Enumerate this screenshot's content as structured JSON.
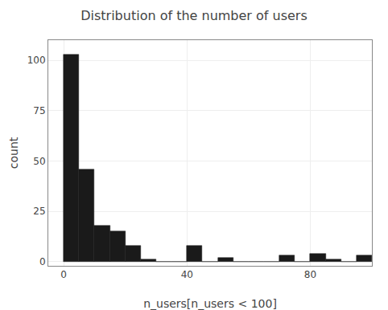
{
  "chart_data": {
    "type": "histogram",
    "title": "Distribution of the number of users",
    "xlabel": "n_users[n_users < 100]",
    "ylabel": "count",
    "bins": [
      0,
      5,
      10,
      15,
      20,
      25,
      30,
      35,
      40,
      45,
      50,
      55,
      60,
      65,
      70,
      75,
      80,
      85,
      90,
      95,
      100
    ],
    "counts": [
      103,
      46,
      18,
      15,
      8,
      1,
      0,
      0,
      8,
      0,
      2,
      0,
      0,
      0,
      3,
      0,
      4,
      1,
      0,
      3
    ],
    "color": "#1a1a1a",
    "xlim": [
      -5,
      100
    ],
    "ylim": [
      -2,
      110
    ],
    "xticks": [
      0,
      40,
      80
    ],
    "yticks": [
      0,
      25,
      50,
      75,
      100
    ],
    "grid": true
  }
}
